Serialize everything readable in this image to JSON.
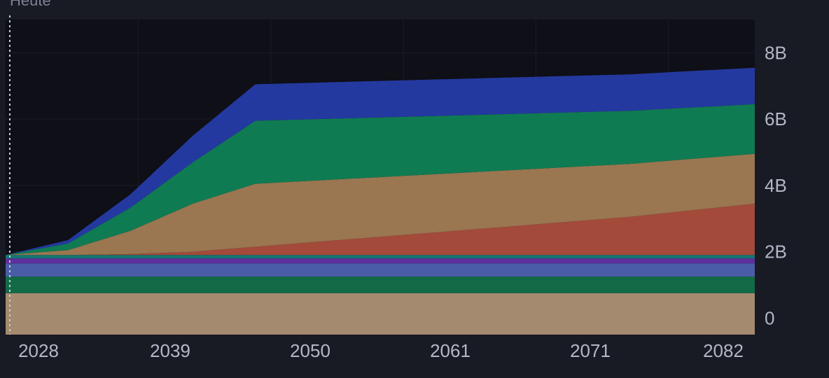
{
  "today_label": "Heute",
  "chart_data": {
    "type": "area",
    "stacked": true,
    "title": "",
    "xlabel": "",
    "ylabel": "",
    "x_ticks": [
      "2028",
      "2039",
      "2050",
      "2061",
      "2071",
      "2082"
    ],
    "y_ticks": [
      "0",
      "2B",
      "4B",
      "6B",
      "8B"
    ],
    "ylim": [
      -0.5,
      9
    ],
    "grid": false,
    "legend": "none",
    "x": [
      0,
      1,
      2,
      3,
      4,
      5,
      6,
      7,
      8,
      9,
      10,
      11,
      12
    ],
    "series": [
      {
        "color": "#a48a6e",
        "values": [
          0.75,
          0.75,
          0.75,
          0.75,
          0.75,
          0.75,
          0.75,
          0.75,
          0.75,
          0.75,
          0.75,
          0.75,
          0.75
        ]
      },
      {
        "color": "#126a47",
        "values": [
          0.5,
          0.5,
          0.5,
          0.5,
          0.5,
          0.5,
          0.5,
          0.5,
          0.5,
          0.5,
          0.5,
          0.5,
          0.5
        ]
      },
      {
        "color": "#4a5ca6",
        "values": [
          0.4,
          0.4,
          0.4,
          0.4,
          0.4,
          0.4,
          0.4,
          0.4,
          0.4,
          0.4,
          0.4,
          0.4,
          0.4
        ]
      },
      {
        "color": "#5e2f9e",
        "values": [
          0.15,
          0.15,
          0.15,
          0.15,
          0.15,
          0.15,
          0.15,
          0.15,
          0.15,
          0.15,
          0.15,
          0.15,
          0.15
        ]
      },
      {
        "color": "#137772",
        "values": [
          0.1,
          0.1,
          0.1,
          0.1,
          0.1,
          0.1,
          0.1,
          0.1,
          0.1,
          0.1,
          0.1,
          0.1,
          0.1
        ]
      },
      {
        "color": "#a34a3b",
        "values": [
          0.0,
          0.0,
          0.03,
          0.1,
          0.25,
          0.4,
          0.55,
          0.7,
          0.85,
          1.0,
          1.15,
          1.35,
          1.55
        ]
      },
      {
        "color": "#9a7651",
        "values": [
          0.0,
          0.15,
          0.7,
          1.45,
          1.9,
          1.85,
          1.8,
          1.75,
          1.7,
          1.65,
          1.6,
          1.55,
          1.5
        ]
      },
      {
        "color": "#0f7b52",
        "values": [
          0.0,
          0.2,
          0.7,
          1.25,
          1.9,
          1.85,
          1.8,
          1.75,
          1.7,
          1.65,
          1.6,
          1.55,
          1.5
        ]
      },
      {
        "color": "#24399f",
        "values": [
          0.0,
          0.1,
          0.4,
          0.8,
          1.1,
          1.1,
          1.1,
          1.1,
          1.1,
          1.1,
          1.1,
          1.1,
          1.1
        ]
      }
    ]
  }
}
